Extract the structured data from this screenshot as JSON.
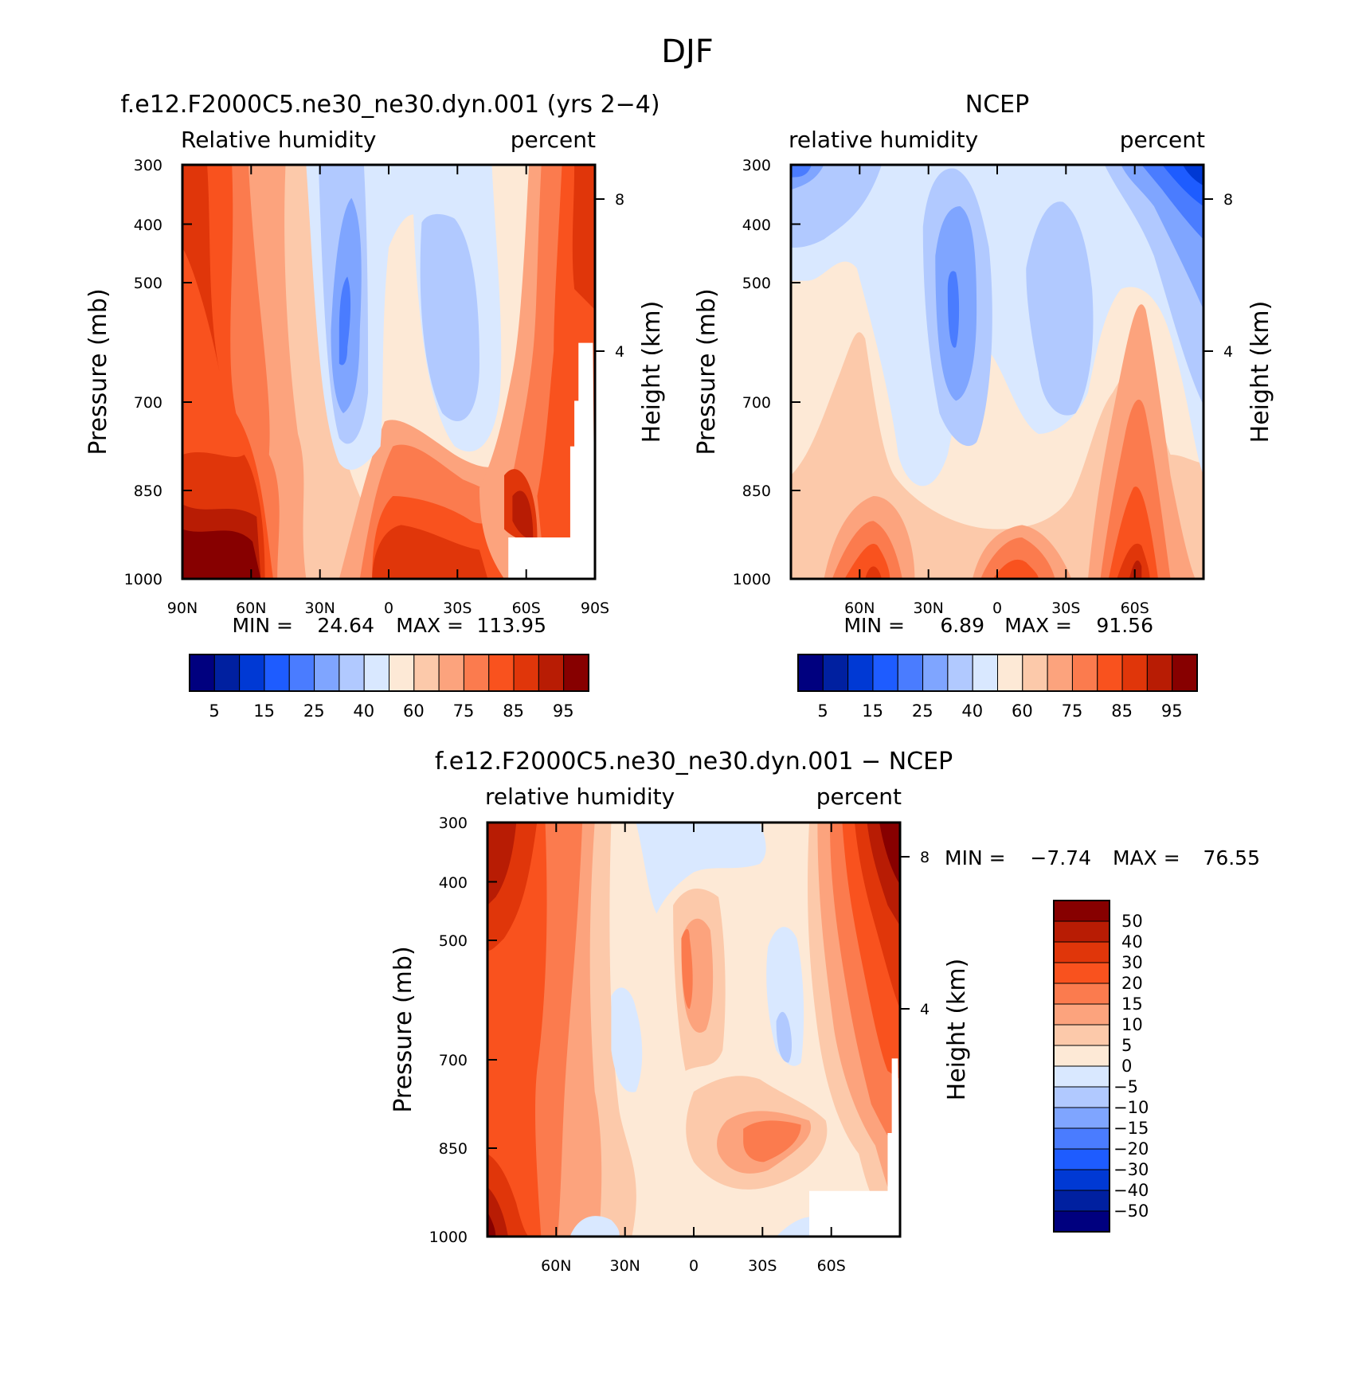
{
  "figure": {
    "title": "DJF"
  },
  "chart_data": [
    {
      "type": "heatmap",
      "panel": "model",
      "title": "f.e12.F2000C5.ne30_ne30.dyn.001 (yrs 2−4)",
      "left_label": "Relative humidity",
      "right_label": "percent",
      "xlabel": "",
      "ylabel": "Pressure (mb)",
      "ylabel_right": "Height (km)",
      "x_ticks": [
        "90N",
        "60N",
        "30N",
        "0",
        "30S",
        "60S",
        "90S"
      ],
      "y_ticks": [
        "300",
        "400",
        "500",
        "700",
        "850",
        "1000"
      ],
      "height_ticks": [
        "8",
        "4"
      ],
      "ylim": [
        1000,
        300
      ],
      "y_scale": "log",
      "stats": {
        "min_label": "MIN =",
        "min": "24.64",
        "max_label": "MAX =",
        "max": "113.95"
      },
      "colorbar": {
        "orientation": "horizontal",
        "labels": [
          "5",
          "15",
          "25",
          "40",
          "60",
          "75",
          "85",
          "95"
        ],
        "levels": [
          5,
          10,
          15,
          20,
          25,
          30,
          40,
          50,
          60,
          70,
          75,
          80,
          85,
          90,
          95
        ],
        "colors": [
          "#00007f",
          "#0020a0",
          "#0039d4",
          "#1e5cff",
          "#4a7cff",
          "#7fa5ff",
          "#b1c9ff",
          "#d9e8ff",
          "#fde9d6",
          "#fcc9aa",
          "#fca37d",
          "#fb7b4e",
          "#f9521e",
          "#e0360a",
          "#b81c04",
          "#870000"
        ]
      }
    },
    {
      "type": "heatmap",
      "panel": "obs",
      "title": "NCEP",
      "left_label": "relative humidity",
      "right_label": "percent",
      "xlabel": "",
      "ylabel": "Pressure (mb)",
      "ylabel_right": "Height (km)",
      "x_ticks": [
        "60N",
        "30N",
        "0",
        "30S",
        "60S"
      ],
      "y_ticks": [
        "300",
        "400",
        "500",
        "700",
        "850",
        "1000"
      ],
      "height_ticks": [
        "8",
        "4"
      ],
      "ylim": [
        1000,
        300
      ],
      "y_scale": "log",
      "stats": {
        "min_label": "MIN =",
        "min": "6.89",
        "max_label": "MAX =",
        "max": "91.56"
      },
      "colorbar": {
        "orientation": "horizontal",
        "labels": [
          "5",
          "15",
          "25",
          "40",
          "60",
          "75",
          "85",
          "95"
        ],
        "levels": [
          5,
          10,
          15,
          20,
          25,
          30,
          40,
          50,
          60,
          70,
          75,
          80,
          85,
          90,
          95
        ],
        "colors": [
          "#00007f",
          "#0020a0",
          "#0039d4",
          "#1e5cff",
          "#4a7cff",
          "#7fa5ff",
          "#b1c9ff",
          "#d9e8ff",
          "#fde9d6",
          "#fcc9aa",
          "#fca37d",
          "#fb7b4e",
          "#f9521e",
          "#e0360a",
          "#b81c04",
          "#870000"
        ]
      }
    },
    {
      "type": "heatmap",
      "panel": "difference",
      "title": "f.e12.F2000C5.ne30_ne30.dyn.001 − NCEP",
      "left_label": "relative humidity",
      "right_label": "percent",
      "xlabel": "",
      "ylabel": "Pressure (mb)",
      "ylabel_right": "Height (km)",
      "x_ticks": [
        "60N",
        "30N",
        "0",
        "30S",
        "60S"
      ],
      "y_ticks": [
        "300",
        "400",
        "500",
        "700",
        "850",
        "1000"
      ],
      "height_ticks": [
        "8",
        "4"
      ],
      "ylim": [
        1000,
        300
      ],
      "y_scale": "log",
      "stats": {
        "min_label": "MIN =",
        "min": "−7.74",
        "max_label": "MAX =",
        "max": "76.55"
      },
      "colorbar": {
        "orientation": "vertical",
        "labels": [
          "50",
          "40",
          "30",
          "20",
          "15",
          "10",
          "5",
          "0",
          "−5",
          "−10",
          "−15",
          "−20",
          "−30",
          "−40",
          "−50"
        ],
        "colors": [
          "#870000",
          "#b81c04",
          "#e0360a",
          "#f9521e",
          "#fb7b4e",
          "#fca37d",
          "#fcc9aa",
          "#fde9d6",
          "#d9e8ff",
          "#b1c9ff",
          "#7fa5ff",
          "#4a7cff",
          "#1e5cff",
          "#0039d4",
          "#0020a0",
          "#00007f"
        ]
      }
    }
  ]
}
